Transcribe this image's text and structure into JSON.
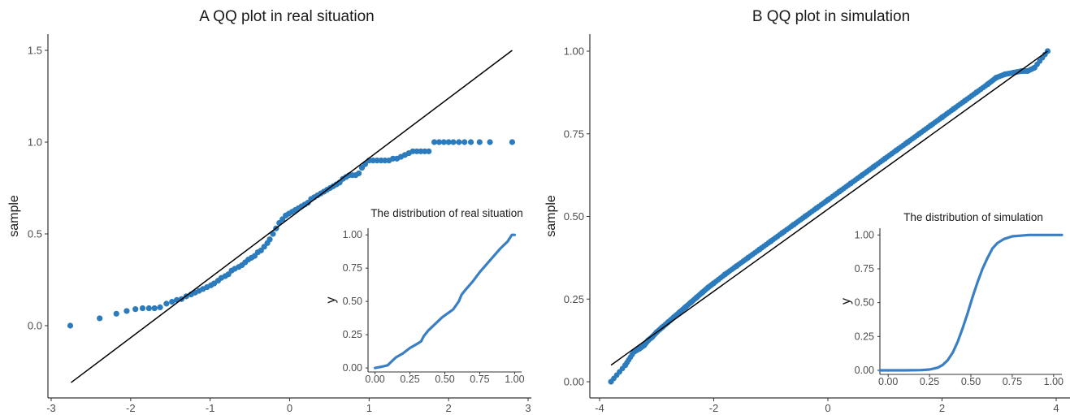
{
  "colors": {
    "points": "#2b7bbd",
    "line": "#000000",
    "cdf": "#3a7fc4",
    "axis": "#333333",
    "text": "#1a1a1a"
  },
  "chart_data": [
    {
      "type": "scatter",
      "title": "A QQ plot in real situation",
      "xlabel": "",
      "ylabel": "sample",
      "xlim": [
        -3,
        3
      ],
      "ylim": [
        -0.3,
        1.55
      ],
      "xticks": [
        -3,
        -2,
        -1,
        0,
        1,
        2,
        3
      ],
      "yticks": [
        0.0,
        0.5,
        1.0,
        1.5
      ],
      "xtick_labels": [
        "-3",
        "-2",
        "-1",
        "0",
        "1",
        "2",
        "3"
      ],
      "ytick_labels": [
        "0.0",
        "0.5",
        "1.0",
        "1.5"
      ],
      "reference_line": {
        "from": [
          -2.75,
          -0.31
        ],
        "to": [
          2.8,
          1.5
        ]
      },
      "series": [
        {
          "points": [
            [
              -2.76,
              0.0
            ],
            [
              -2.39,
              0.04
            ],
            [
              -2.18,
              0.065
            ],
            [
              -2.05,
              0.08
            ],
            [
              -1.94,
              0.09
            ],
            [
              -1.85,
              0.095
            ],
            [
              -1.77,
              0.095
            ],
            [
              -1.7,
              0.095
            ],
            [
              -1.63,
              0.1
            ],
            [
              -1.55,
              0.12
            ],
            [
              -1.48,
              0.13
            ],
            [
              -1.42,
              0.14
            ],
            [
              -1.36,
              0.145
            ],
            [
              -1.3,
              0.16
            ],
            [
              -1.24,
              0.17
            ],
            [
              -1.19,
              0.18
            ],
            [
              -1.14,
              0.19
            ],
            [
              -1.09,
              0.2
            ],
            [
              -1.04,
              0.21
            ],
            [
              -0.99,
              0.22
            ],
            [
              -0.95,
              0.23
            ],
            [
              -0.9,
              0.245
            ],
            [
              -0.86,
              0.26
            ],
            [
              -0.81,
              0.27
            ],
            [
              -0.77,
              0.28
            ],
            [
              -0.73,
              0.3
            ],
            [
              -0.69,
              0.31
            ],
            [
              -0.64,
              0.32
            ],
            [
              -0.6,
              0.33
            ],
            [
              -0.56,
              0.345
            ],
            [
              -0.52,
              0.36
            ],
            [
              -0.48,
              0.37
            ],
            [
              -0.44,
              0.38
            ],
            [
              -0.4,
              0.4
            ],
            [
              -0.36,
              0.41
            ],
            [
              -0.32,
              0.43
            ],
            [
              -0.28,
              0.45
            ],
            [
              -0.25,
              0.47
            ],
            [
              -0.21,
              0.5
            ],
            [
              -0.17,
              0.53
            ],
            [
              -0.13,
              0.56
            ],
            [
              -0.09,
              0.58
            ],
            [
              -0.05,
              0.6
            ],
            [
              -0.01,
              0.61
            ],
            [
              0.03,
              0.62
            ],
            [
              0.07,
              0.63
            ],
            [
              0.11,
              0.64
            ],
            [
              0.15,
              0.65
            ],
            [
              0.19,
              0.66
            ],
            [
              0.23,
              0.67
            ],
            [
              0.27,
              0.69
            ],
            [
              0.31,
              0.7
            ],
            [
              0.35,
              0.71
            ],
            [
              0.39,
              0.72
            ],
            [
              0.43,
              0.73
            ],
            [
              0.47,
              0.74
            ],
            [
              0.51,
              0.75
            ],
            [
              0.55,
              0.76
            ],
            [
              0.59,
              0.77
            ],
            [
              0.63,
              0.78
            ],
            [
              0.67,
              0.8
            ],
            [
              0.71,
              0.81
            ],
            [
              0.75,
              0.82
            ],
            [
              0.79,
              0.82
            ],
            [
              0.83,
              0.82
            ],
            [
              0.87,
              0.83
            ],
            [
              0.91,
              0.86
            ],
            [
              0.95,
              0.88
            ],
            [
              1.0,
              0.9
            ],
            [
              1.05,
              0.9
            ],
            [
              1.1,
              0.9
            ],
            [
              1.15,
              0.9
            ],
            [
              1.2,
              0.9
            ],
            [
              1.25,
              0.9
            ],
            [
              1.3,
              0.91
            ],
            [
              1.35,
              0.91
            ],
            [
              1.4,
              0.92
            ],
            [
              1.45,
              0.93
            ],
            [
              1.5,
              0.94
            ],
            [
              1.55,
              0.95
            ],
            [
              1.6,
              0.95
            ],
            [
              1.65,
              0.95
            ],
            [
              1.7,
              0.95
            ],
            [
              1.75,
              0.95
            ],
            [
              1.82,
              1.0
            ],
            [
              1.88,
              1.0
            ],
            [
              1.94,
              1.0
            ],
            [
              2.0,
              1.0
            ],
            [
              2.06,
              1.0
            ],
            [
              2.13,
              1.0
            ],
            [
              2.2,
              1.0
            ],
            [
              2.28,
              1.0
            ],
            [
              2.39,
              1.0
            ],
            [
              2.52,
              1.0
            ],
            [
              2.8,
              1.0
            ]
          ]
        }
      ],
      "inset": {
        "type": "line",
        "title": "The distribution of real situation",
        "xlabel": "",
        "ylabel": "y",
        "xlim": [
          -0.05,
          1.05
        ],
        "ylim": [
          -0.03,
          1.05
        ],
        "xticks": [
          0.0,
          0.25,
          0.5,
          0.75,
          1.0
        ],
        "yticks": [
          0.0,
          0.25,
          0.5,
          0.75,
          1.0
        ],
        "xtick_labels": [
          "0.00",
          "0.25",
          "0.50",
          "0.75",
          "1.00"
        ],
        "ytick_labels": [
          "0.00",
          "0.25",
          "0.50",
          "0.75",
          "1.00"
        ],
        "series": [
          {
            "x": [
              0.0,
              0.05,
              0.09,
              0.12,
              0.15,
              0.2,
              0.25,
              0.3,
              0.33,
              0.35,
              0.38,
              0.41,
              0.44,
              0.48,
              0.52,
              0.56,
              0.6,
              0.62,
              0.65,
              0.7,
              0.75,
              0.8,
              0.85,
              0.9,
              0.95,
              0.98,
              1.0
            ],
            "y": [
              0.0,
              0.01,
              0.02,
              0.05,
              0.08,
              0.11,
              0.15,
              0.18,
              0.2,
              0.24,
              0.28,
              0.31,
              0.34,
              0.38,
              0.41,
              0.44,
              0.5,
              0.55,
              0.59,
              0.65,
              0.72,
              0.78,
              0.84,
              0.9,
              0.95,
              1.0,
              1.0
            ]
          }
        ]
      }
    },
    {
      "type": "scatter",
      "title": "B QQ plot in simulation",
      "xlabel": "",
      "ylabel": "sample",
      "xlim": [
        -4.05,
        4.05
      ],
      "ylim": [
        -0.03,
        1.05
      ],
      "xticks": [
        -4,
        -2,
        0,
        2,
        4
      ],
      "yticks": [
        0.0,
        0.25,
        0.5,
        0.75,
        1.0
      ],
      "xtick_labels": [
        "-4",
        "-2",
        "0",
        "2",
        "4"
      ],
      "ytick_labels": [
        "0.00",
        "0.25",
        "0.50",
        "0.75",
        "1.00"
      ],
      "reference_line": {
        "from": [
          -3.8,
          0.05
        ],
        "to": [
          3.85,
          1.0
        ]
      },
      "series": [
        {
          "points": [
            [
              -3.8,
              0.0
            ],
            [
              -3.55,
              0.05
            ],
            [
              -3.4,
              0.09
            ],
            [
              -3.3,
              0.1
            ],
            [
              -3.22,
              0.11
            ],
            [
              -3.15,
              0.125
            ],
            [
              -3.08,
              0.135
            ],
            [
              -3.0,
              0.15
            ],
            [
              -2.9,
              0.165
            ],
            [
              -2.8,
              0.18
            ],
            [
              -2.7,
              0.195
            ],
            [
              -2.6,
              0.21
            ],
            [
              -2.5,
              0.225
            ],
            [
              -2.4,
              0.24
            ],
            [
              -2.3,
              0.255
            ],
            [
              -2.2,
              0.27
            ],
            [
              -2.1,
              0.285
            ],
            [
              -2.0,
              0.298
            ],
            [
              -1.8,
              0.325
            ],
            [
              -1.6,
              0.35
            ],
            [
              -1.4,
              0.375
            ],
            [
              -1.2,
              0.4
            ],
            [
              -1.0,
              0.425
            ],
            [
              -0.8,
              0.45
            ],
            [
              -0.6,
              0.475
            ],
            [
              -0.4,
              0.5
            ],
            [
              -0.2,
              0.525
            ],
            [
              0.0,
              0.55
            ],
            [
              0.2,
              0.575
            ],
            [
              0.4,
              0.6
            ],
            [
              0.6,
              0.625
            ],
            [
              0.8,
              0.65
            ],
            [
              1.0,
              0.675
            ],
            [
              1.2,
              0.7
            ],
            [
              1.4,
              0.725
            ],
            [
              1.6,
              0.75
            ],
            [
              1.8,
              0.775
            ],
            [
              2.0,
              0.8
            ],
            [
              2.2,
              0.825
            ],
            [
              2.4,
              0.85
            ],
            [
              2.6,
              0.875
            ],
            [
              2.8,
              0.9
            ],
            [
              2.95,
              0.92
            ],
            [
              3.1,
              0.93
            ],
            [
              3.25,
              0.935
            ],
            [
              3.4,
              0.94
            ],
            [
              3.5,
              0.94
            ],
            [
              3.62,
              0.95
            ],
            [
              3.85,
              1.0
            ]
          ]
        }
      ],
      "inset": {
        "type": "line",
        "title": "The distribution of simulation",
        "xlabel": "",
        "ylabel": "y",
        "xlim": [
          -0.05,
          1.05
        ],
        "ylim": [
          -0.03,
          1.05
        ],
        "xticks": [
          0.0,
          0.25,
          0.5,
          0.75,
          1.0
        ],
        "yticks": [
          0.0,
          0.25,
          0.5,
          0.75,
          1.0
        ],
        "xtick_labels": [
          "0.00",
          "0.25",
          "0.50",
          "0.75",
          "1.00"
        ],
        "ytick_labels": [
          "0.00",
          "0.25",
          "0.50",
          "0.75",
          "1.00"
        ],
        "series": [
          {
            "x": [
              -0.05,
              0.0,
              0.1,
              0.2,
              0.25,
              0.3,
              0.33,
              0.36,
              0.39,
              0.42,
              0.45,
              0.48,
              0.51,
              0.54,
              0.57,
              0.6,
              0.63,
              0.66,
              0.7,
              0.75,
              0.8,
              0.85,
              0.9,
              1.05
            ],
            "y": [
              0.0,
              0.0,
              0.0,
              0.002,
              0.006,
              0.02,
              0.04,
              0.075,
              0.13,
              0.21,
              0.31,
              0.42,
              0.54,
              0.65,
              0.75,
              0.83,
              0.9,
              0.94,
              0.97,
              0.99,
              0.995,
              1.0,
              1.0,
              1.0
            ]
          }
        ]
      }
    }
  ]
}
